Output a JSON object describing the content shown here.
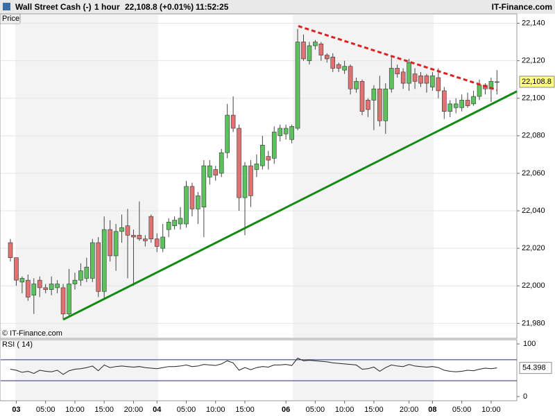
{
  "header": {
    "instrument": "Wall Street Cash (-)",
    "interval": "1 hour",
    "quote": "22,108.8 (+0.01%)",
    "time": "11:52:25",
    "brand": "IT-Finance.com"
  },
  "chart_data": [
    {
      "type": "candlestick",
      "label": "Price",
      "watermark": "© IT-Finance.com",
      "categories": [
        null,
        "03",
        null,
        null,
        null,
        null,
        "05:00",
        null,
        null,
        null,
        null,
        "10:00",
        null,
        null,
        null,
        null,
        "15:00",
        null,
        null,
        null,
        null,
        "20:00",
        null,
        null,
        null,
        "04",
        null,
        null,
        null,
        null,
        "05:00",
        null,
        null,
        null,
        null,
        "10:00",
        null,
        null,
        null,
        null,
        "15:00",
        null,
        null,
        null,
        null,
        null,
        null,
        "06",
        null,
        null,
        null,
        null,
        "05:00",
        null,
        null,
        null,
        null,
        "10:00",
        null,
        null,
        null,
        null,
        "15:00",
        null,
        null,
        null,
        null,
        null,
        "20:00",
        null,
        null,
        null,
        "08",
        null,
        null,
        null,
        null,
        "05:00",
        null,
        null,
        null,
        null,
        "10:00",
        null
      ],
      "open": [
        22023,
        22015,
        22002,
        22003,
        21995,
        22003,
        21999,
        21998,
        21999,
        21999,
        21985,
        22001,
        22003,
        22004,
        22004,
        22023,
        21997,
        22030,
        22016,
        22029,
        22032,
        22027,
        22027,
        22025,
        22037,
        22025,
        22020,
        22030,
        22032,
        22033,
        22033,
        22053,
        22041,
        22042,
        22058,
        22062,
        22060,
        22071,
        22091,
        22084,
        22047,
        22064,
        22062,
        22064,
        22069,
        22068,
        22080,
        22081,
        22078,
        22084,
        22130,
        22120,
        22128,
        22129,
        22123,
        22122,
        22118,
        22115,
        22117,
        22105,
        22109,
        22099,
        22099,
        22105,
        22088,
        22105,
        22116,
        22114,
        22108,
        22113,
        22112,
        22112,
        22106,
        22111,
        22104,
        22093,
        22095,
        22095,
        22099,
        22097,
        22101,
        22107,
        22105,
        22108.5
      ],
      "high": [
        22025,
        22015,
        22005,
        22006,
        22004,
        22005,
        22001,
        22005,
        22003,
        22001,
        22009,
        22007,
        22012,
        22015,
        22025,
        22026,
        22037,
        22035,
        22033,
        22038,
        22041,
        22030,
        22045,
        22027,
        22038,
        22028,
        22033,
        22036,
        22037,
        22042,
        22056,
        22055,
        22050,
        22067,
        22067,
        22064,
        22073,
        22097,
        22101,
        22086,
        22066,
        22067,
        22070,
        22080,
        22072,
        22085,
        22086,
        22086,
        22086,
        22137,
        22134,
        22130,
        22131,
        22130,
        22124,
        22124,
        22119,
        22120,
        22118,
        22111,
        22110,
        22100,
        22107,
        22112,
        22108,
        22123,
        22118,
        22116,
        22121,
        22116,
        22114,
        22113,
        22114,
        22116,
        22106,
        22099,
        22100,
        22102,
        22103,
        22104,
        22110,
        22108,
        22111,
        22115
      ],
      "low": [
        22013,
        22000,
        21996,
        21992,
        21985,
        21994,
        21996,
        21995,
        21996,
        21982,
        21983,
        21998,
        22000,
        22002,
        22002,
        21994,
        21993,
        22013,
        22008,
        22023,
        22004,
        22000,
        22024,
        22021,
        22023,
        22018,
        22018,
        22026,
        22030,
        22030,
        22031,
        22037,
        22033,
        22026,
        22054,
        22056,
        22058,
        22068,
        22082,
        22040,
        22027,
        22042,
        22058,
        22062,
        22062,
        22065,
        22077,
        22078,
        22076,
        22083,
        22120,
        22118,
        22126,
        22120,
        22119,
        22114,
        22114,
        22113,
        22102,
        22103,
        22091,
        22090,
        22083,
        22085,
        22081,
        22103,
        22111,
        22105,
        22104,
        22105,
        22106,
        22103,
        22104,
        22100,
        22089,
        22090,
        22092,
        22093,
        22095,
        22096,
        22099,
        22102,
        22098,
        22102
      ],
      "close": [
        22015,
        22003,
        22004,
        21994,
        22001,
        21999,
        21998,
        22001,
        22001,
        21985,
        22001,
        22003,
        22008,
        22010,
        22023,
        21997,
        22030,
        22016,
        22029,
        22031,
        22027,
        22026,
        22025,
        22024,
        22025,
        22021,
        22026,
        22034,
        22035,
        22036,
        22053,
        22041,
        22048,
        22064,
        22064,
        22059,
        22071,
        22091,
        22084,
        22047,
        22064,
        22048,
        22065,
        22075,
        22067,
        22082,
        22084,
        22084,
        22085,
        22130,
        22121,
        22128,
        22130,
        22123,
        22121,
        22116,
        22116,
        22117,
        22105,
        22109,
        22093,
        22094,
        22105,
        22088,
        22105,
        22116,
        22113,
        22108,
        22119,
        22109,
        22108,
        22108,
        22112,
        22104,
        22093,
        22097,
        22097,
        22099,
        22096,
        22101,
        22107,
        22105,
        22109,
        22108.8
      ],
      "up_color": "#5dc25d",
      "down_color": "#e07272",
      "ylim": [
        21972,
        22145
      ],
      "yticks": [
        {
          "value": 21980,
          "label": "21,980"
        },
        {
          "value": 22000,
          "label": "22,000"
        },
        {
          "value": 22020,
          "label": "22,020"
        },
        {
          "value": 22040,
          "label": "22,040"
        },
        {
          "value": 22060,
          "label": "22,060"
        },
        {
          "value": 22080,
          "label": "22,080"
        },
        {
          "value": 22100,
          "label": "22,100"
        },
        {
          "value": 22120,
          "label": "22,120"
        },
        {
          "value": 22140,
          "label": "22,140"
        }
      ],
      "grid": true,
      "last_label": "22,108.8",
      "trendlines": [
        {
          "color": "#148a14",
          "style": "solid",
          "x": [
            9,
            86.4
          ],
          "y": [
            21982,
            22103.7
          ]
        },
        {
          "color": "#e02020",
          "style": "dashed",
          "x": [
            49.1,
            83
          ],
          "y": [
            22138.5,
            22104.4
          ]
        }
      ]
    },
    {
      "type": "line",
      "title": "RSI ( 14)",
      "color": "#222222",
      "values": [
        52,
        50,
        46,
        48,
        44,
        50,
        48,
        47,
        50,
        42,
        49,
        52,
        53,
        55,
        58,
        49,
        60,
        55,
        57,
        58,
        57,
        56,
        57,
        55,
        54,
        53,
        55,
        57,
        57,
        58,
        60,
        57,
        58,
        61,
        60,
        59,
        62,
        68,
        64,
        50,
        55,
        51,
        55,
        57,
        56,
        60,
        60,
        61,
        59,
        73,
        68,
        69,
        68,
        67,
        66,
        64,
        63,
        62,
        61,
        60,
        52,
        53,
        56,
        48,
        55,
        60,
        58,
        57,
        61,
        58,
        57,
        56,
        57,
        55,
        50,
        48,
        47,
        48,
        50,
        49,
        52,
        54,
        53,
        54.398
      ],
      "ylim": [
        -8,
        108
      ],
      "yticks": [
        100,
        0
      ],
      "levels": [
        70,
        30
      ],
      "level_color": "#2a2a80",
      "last_label": "54.398"
    }
  ]
}
